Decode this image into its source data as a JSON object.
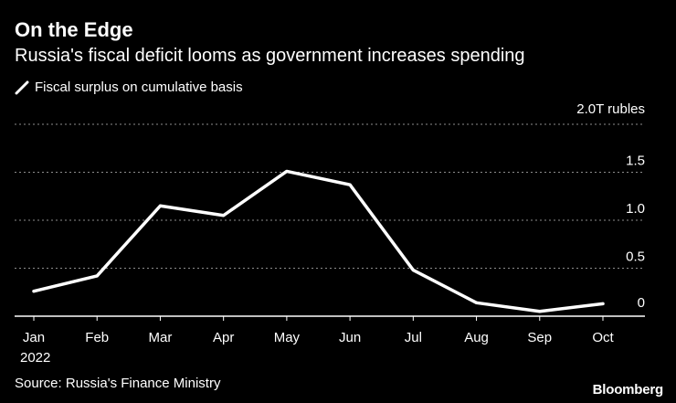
{
  "header": {
    "title": "On the Edge",
    "subtitle": "Russia's fiscal deficit looms as government increases spending"
  },
  "legend": {
    "label": "Fiscal surplus on cumulative basis"
  },
  "footer": {
    "source": "Source: Russia's Finance Ministry",
    "brand": "Bloomberg"
  },
  "colors": {
    "background": "#000000",
    "line": "#ffffff",
    "grid": "#8c8c8c",
    "text": "#ffffff"
  },
  "chart_data": {
    "type": "line",
    "title": "On the Edge",
    "subtitle": "Russia's fiscal deficit looms as government increases spending",
    "categories": [
      "Jan",
      "Feb",
      "Mar",
      "Apr",
      "May",
      "Jun",
      "Jul",
      "Aug",
      "Sep",
      "Oct"
    ],
    "x_sublabel": "2022",
    "series": [
      {
        "name": "Fiscal surplus on cumulative basis",
        "values": [
          0.26,
          0.42,
          1.15,
          1.05,
          1.51,
          1.37,
          0.48,
          0.14,
          0.05,
          0.13
        ]
      }
    ],
    "ylabel": "",
    "xlabel": "",
    "y_unit_label": "2.0T rubles",
    "y_ticks": [
      {
        "value": 0,
        "label": "0"
      },
      {
        "value": 0.5,
        "label": "0.5"
      },
      {
        "value": 1.0,
        "label": "1.0"
      },
      {
        "value": 1.5,
        "label": "1.5"
      },
      {
        "value": 2.0,
        "label": "2.0T rubles"
      }
    ],
    "ylim": [
      0,
      2.0
    ],
    "grid": true,
    "legend_position": "top-left"
  }
}
